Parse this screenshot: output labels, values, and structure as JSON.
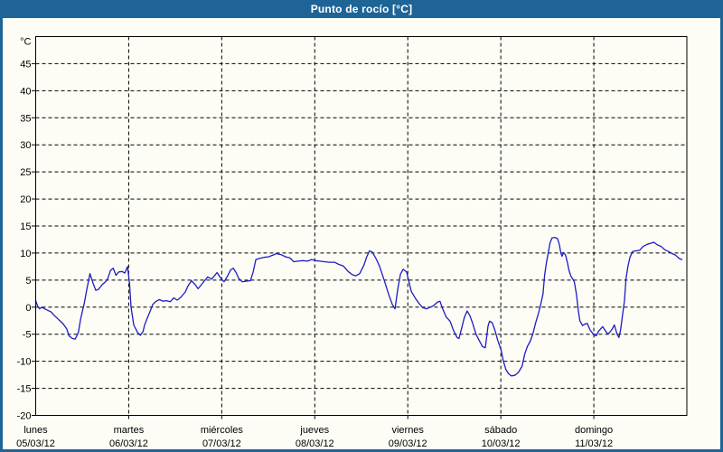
{
  "window": {
    "title": "Punto de rocío [°C]"
  },
  "colors": {
    "frame": "#1E6496",
    "background": "#FDFDF6",
    "plot_line": "#1C1CC4",
    "grid": "#000000",
    "title_text": "#FFFFFF",
    "label_text": "#000000"
  },
  "chart_data": {
    "type": "line",
    "title": "Punto de rocío [°C]",
    "ylabel": "°C",
    "grid": "dashed",
    "legend_position": "none",
    "y_axis": {
      "unit_label": "°C",
      "min": -20,
      "max": 50,
      "tick_step": 5,
      "ticks": [
        45,
        40,
        35,
        30,
        25,
        20,
        15,
        10,
        5,
        0,
        -5,
        -10,
        -15,
        -20
      ]
    },
    "x_axis": {
      "hours_total": 168,
      "days": [
        {
          "weekday": "lunes",
          "date": "05/03/12"
        },
        {
          "weekday": "martes",
          "date": "06/03/12"
        },
        {
          "weekday": "miércoles",
          "date": "07/03/12"
        },
        {
          "weekday": "jueves",
          "date": "08/03/12"
        },
        {
          "weekday": "viernes",
          "date": "09/03/12"
        },
        {
          "weekday": "sábado",
          "date": "10/03/12"
        },
        {
          "weekday": "domingo",
          "date": "11/03/12"
        }
      ]
    },
    "series": [
      {
        "name": "Punto de rocío",
        "unit": "°C",
        "points": [
          [
            0,
            1.2
          ],
          [
            0.5,
            0.2
          ],
          [
            1,
            -0.3
          ],
          [
            1.6,
            0
          ],
          [
            2.3,
            -0.3
          ],
          [
            3.2,
            -0.6
          ],
          [
            4,
            -0.9
          ],
          [
            4.6,
            -1.4
          ],
          [
            5.5,
            -2
          ],
          [
            6.2,
            -2.5
          ],
          [
            7,
            -3
          ],
          [
            8,
            -4
          ],
          [
            8.6,
            -5.3
          ],
          [
            9.5,
            -5.8
          ],
          [
            10.2,
            -5.9
          ],
          [
            11,
            -4.7
          ],
          [
            11.6,
            -2.2
          ],
          [
            12.5,
            0.6
          ],
          [
            13.2,
            3.3
          ],
          [
            14,
            6.2
          ],
          [
            14.8,
            4.4
          ],
          [
            15.5,
            3.1
          ],
          [
            16.2,
            3.3
          ],
          [
            17.2,
            4.2
          ],
          [
            18,
            4.7
          ],
          [
            18.6,
            5.3
          ],
          [
            19.3,
            6.8
          ],
          [
            20,
            7.2
          ],
          [
            20.7,
            5.9
          ],
          [
            21.4,
            6.5
          ],
          [
            22.3,
            6.6
          ],
          [
            23,
            6.3
          ],
          [
            23.7,
            7.5
          ],
          [
            24.2,
            4.5
          ],
          [
            24.6,
            0
          ],
          [
            25.3,
            -3.3
          ],
          [
            26.3,
            -4.7
          ],
          [
            27,
            -5.2
          ],
          [
            27.7,
            -4.5
          ],
          [
            28.1,
            -3.3
          ],
          [
            28.8,
            -2
          ],
          [
            29.5,
            -0.8
          ],
          [
            30.2,
            0.5
          ],
          [
            30.9,
            1
          ],
          [
            31.9,
            1.4
          ],
          [
            32.8,
            1.1
          ],
          [
            33.7,
            1.2
          ],
          [
            34.7,
            1
          ],
          [
            35.6,
            1.7
          ],
          [
            36.5,
            1.3
          ],
          [
            37.4,
            1.8
          ],
          [
            38.6,
            2.8
          ],
          [
            39.3,
            3.9
          ],
          [
            40.2,
            4.9
          ],
          [
            41.2,
            4.1
          ],
          [
            41.9,
            3.4
          ],
          [
            42.8,
            4.2
          ],
          [
            43.7,
            5
          ],
          [
            44.4,
            5.6
          ],
          [
            45.4,
            5.2
          ],
          [
            46.1,
            5.8
          ],
          [
            46.8,
            6.4
          ],
          [
            47.7,
            5.4
          ],
          [
            48.6,
            4.7
          ],
          [
            49.3,
            5.5
          ],
          [
            50.3,
            6.9
          ],
          [
            51,
            7.2
          ],
          [
            51.7,
            6.4
          ],
          [
            52.4,
            5.3
          ],
          [
            53.3,
            4.7
          ],
          [
            54.2,
            4.8
          ],
          [
            55.4,
            4.9
          ],
          [
            56.1,
            6.5
          ],
          [
            56.8,
            8.8
          ],
          [
            57.7,
            9
          ],
          [
            58.9,
            9.2
          ],
          [
            60,
            9.3
          ],
          [
            61.2,
            9.6
          ],
          [
            62.1,
            9.9
          ],
          [
            63.3,
            9.7
          ],
          [
            64.5,
            9.3
          ],
          [
            65.6,
            9.1
          ],
          [
            66.6,
            8.4
          ],
          [
            67.7,
            8.5
          ],
          [
            68.9,
            8.6
          ],
          [
            70.1,
            8.5
          ],
          [
            71.2,
            8.8
          ],
          [
            72.2,
            8.6
          ],
          [
            73.3,
            8.5
          ],
          [
            74.5,
            8.4
          ],
          [
            75.7,
            8.3
          ],
          [
            77.1,
            8.3
          ],
          [
            78.2,
            7.9
          ],
          [
            79.4,
            7.6
          ],
          [
            80.6,
            6.6
          ],
          [
            81.7,
            6
          ],
          [
            82.6,
            5.8
          ],
          [
            83.6,
            6.2
          ],
          [
            84.7,
            7.8
          ],
          [
            85.4,
            9.3
          ],
          [
            86.1,
            10.4
          ],
          [
            86.8,
            10.2
          ],
          [
            87.8,
            9
          ],
          [
            88.7,
            7.6
          ],
          [
            89.9,
            5
          ],
          [
            91,
            2.5
          ],
          [
            92,
            0.5
          ],
          [
            92.7,
            -0.3
          ],
          [
            93.4,
            3.3
          ],
          [
            94.1,
            6.1
          ],
          [
            94.8,
            7
          ],
          [
            95.7,
            6.5
          ],
          [
            96.2,
            5
          ],
          [
            96.9,
            2.9
          ],
          [
            98,
            1.6
          ],
          [
            99,
            0.6
          ],
          [
            99.9,
            -0.1
          ],
          [
            100.8,
            -0.3
          ],
          [
            101.8,
            0
          ],
          [
            102.7,
            0.3
          ],
          [
            103.6,
            0.9
          ],
          [
            104.3,
            1.1
          ],
          [
            105,
            -0.3
          ],
          [
            105.9,
            -1.8
          ],
          [
            106.9,
            -2.6
          ],
          [
            107.8,
            -4.3
          ],
          [
            108.7,
            -5.6
          ],
          [
            109.2,
            -5.8
          ],
          [
            109.9,
            -3.9
          ],
          [
            110.6,
            -1.9
          ],
          [
            111.3,
            -0.7
          ],
          [
            112,
            -1.5
          ],
          [
            112.7,
            -2.9
          ],
          [
            113.6,
            -5
          ],
          [
            114.6,
            -6.4
          ],
          [
            115.3,
            -7.3
          ],
          [
            116,
            -7.5
          ],
          [
            116.7,
            -3.5
          ],
          [
            117.1,
            -2.6
          ],
          [
            117.8,
            -2.9
          ],
          [
            118.5,
            -4.3
          ],
          [
            119.2,
            -6.1
          ],
          [
            120.1,
            -8
          ],
          [
            120.6,
            -9.8
          ],
          [
            121.3,
            -11.5
          ],
          [
            122,
            -12.3
          ],
          [
            122.7,
            -12.7
          ],
          [
            123.6,
            -12.6
          ],
          [
            124.6,
            -12
          ],
          [
            125.5,
            -10.9
          ],
          [
            126.2,
            -8.6
          ],
          [
            126.9,
            -7.2
          ],
          [
            127.6,
            -6.3
          ],
          [
            128.3,
            -4.9
          ],
          [
            129,
            -2.9
          ],
          [
            129.7,
            -1.2
          ],
          [
            130.2,
            0.2
          ],
          [
            130.9,
            2.5
          ],
          [
            131.3,
            5.9
          ],
          [
            131.8,
            8.3
          ],
          [
            132.3,
            10.3
          ],
          [
            132.7,
            11.9
          ],
          [
            133.2,
            12.8
          ],
          [
            133.9,
            12.9
          ],
          [
            134.6,
            12.7
          ],
          [
            135.1,
            11.6
          ],
          [
            135.5,
            10
          ],
          [
            135.8,
            9.4
          ],
          [
            136.2,
            10.1
          ],
          [
            136.7,
            9.6
          ],
          [
            137.2,
            8.2
          ],
          [
            137.6,
            6.8
          ],
          [
            138.1,
            5.7
          ],
          [
            138.6,
            5.2
          ],
          [
            139,
            4.6
          ],
          [
            139.5,
            2.4
          ],
          [
            140,
            -0.6
          ],
          [
            140.4,
            -2.5
          ],
          [
            141.1,
            -3.4
          ],
          [
            141.8,
            -3.1
          ],
          [
            142.3,
            -3
          ],
          [
            143,
            -4.2
          ],
          [
            143.9,
            -5
          ],
          [
            144.6,
            -5.3
          ],
          [
            145.3,
            -4.4
          ],
          [
            146.3,
            -3.6
          ],
          [
            147,
            -4.4
          ],
          [
            147.7,
            -5
          ],
          [
            148.6,
            -4.2
          ],
          [
            149.3,
            -3.3
          ],
          [
            150,
            -5
          ],
          [
            150.5,
            -5.6
          ],
          [
            150.9,
            -4.2
          ],
          [
            151.4,
            -1.5
          ],
          [
            151.9,
            1.2
          ],
          [
            152.3,
            5.3
          ],
          [
            152.8,
            7.5
          ],
          [
            153.3,
            9.2
          ],
          [
            154,
            10.3
          ],
          [
            154.9,
            10.4
          ],
          [
            155.8,
            10.5
          ],
          [
            156.7,
            11.2
          ],
          [
            157.7,
            11.6
          ],
          [
            158.6,
            11.8
          ],
          [
            159.5,
            12
          ],
          [
            160.4,
            11.5
          ],
          [
            161.4,
            11.2
          ],
          [
            162.3,
            10.6
          ],
          [
            163.2,
            10.3
          ],
          [
            164.2,
            9.9
          ],
          [
            165.1,
            9.6
          ],
          [
            166,
            9
          ],
          [
            166.7,
            8.8
          ]
        ]
      }
    ]
  }
}
